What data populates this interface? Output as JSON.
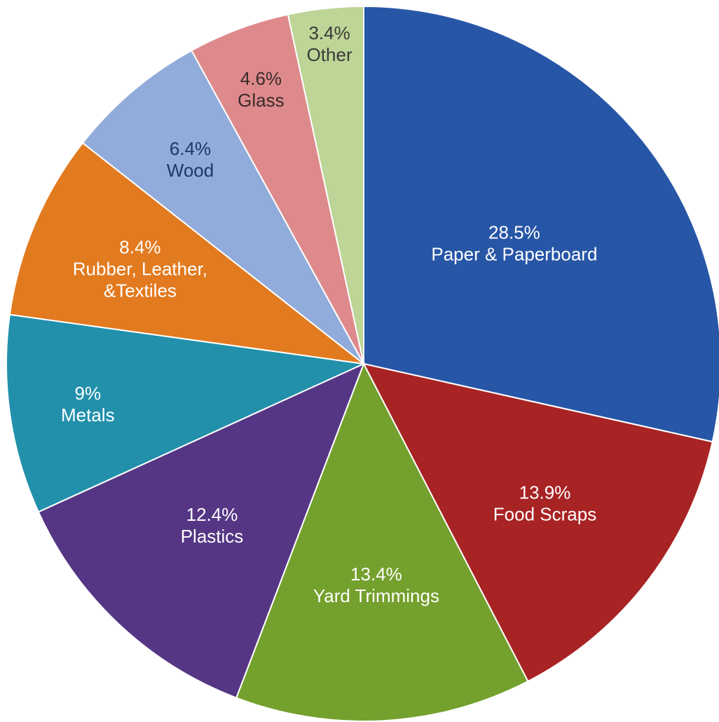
{
  "chart_data": {
    "type": "pie",
    "title": "",
    "start_angle_deg": 0,
    "direction": "clockwise",
    "slices": [
      {
        "label": "Paper & Paperboard",
        "value": 28.5,
        "value_label": "28.5%",
        "color": "#2756A6",
        "text_color": "#FFFFFF"
      },
      {
        "label": "Food Scraps",
        "value": 13.9,
        "value_label": "13.9%",
        "color": "#A82324",
        "text_color": "#FFFFFF"
      },
      {
        "label": "Yard Trimmings",
        "value": 13.4,
        "value_label": "13.4%",
        "color": "#74A02D",
        "text_color": "#FFFFFF"
      },
      {
        "label": "Plastics",
        "value": 12.4,
        "value_label": "12.4%",
        "color": "#553684",
        "text_color": "#FFFFFF"
      },
      {
        "label": "Metals",
        "value": 9,
        "value_label": "9%",
        "color": "#2290AB",
        "text_color": "#FFFFFF"
      },
      {
        "label": "Rubber, Leather,\n&Textiles",
        "value": 8.4,
        "value_label": "8.4%",
        "color": "#E27A1F",
        "text_color": "#FFFFFF"
      },
      {
        "label": "Wood",
        "value": 6.4,
        "value_label": "6.4%",
        "color": "#91ABDA",
        "text_color": "#1F3864"
      },
      {
        "label": "Glass",
        "value": 4.6,
        "value_label": "4.6%",
        "color": "#DE8A8C",
        "text_color": "#3A2A2A"
      },
      {
        "label": "Other",
        "value": 3.4,
        "value_label": "3.4%",
        "color": "#BDD596",
        "text_color": "#3A3A3A"
      }
    ]
  }
}
